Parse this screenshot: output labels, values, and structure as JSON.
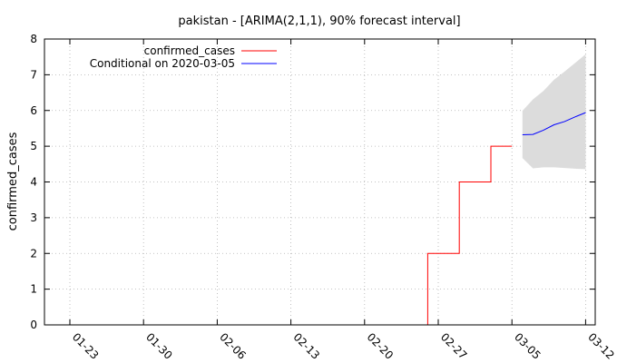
{
  "chart_data": {
    "type": "line",
    "title": "pakistan -  [ARIMA(2,1,1), 90% forecast interval]",
    "xlabel": "",
    "ylabel": "confirmed_cases",
    "ylim": [
      0,
      8
    ],
    "yticks": [
      "0",
      "1",
      "2",
      "3",
      "4",
      "5",
      "6",
      "7",
      "8"
    ],
    "xticks": [
      "01-23",
      "01-30",
      "02-06",
      "02-13",
      "02-20",
      "02-27",
      "03-05",
      "03-12"
    ],
    "grid": true,
    "legend_position": "top-left",
    "colors": {
      "observed": "#ff0000",
      "forecast": "#0000ff",
      "interval": "#dcdcdc"
    },
    "series": [
      {
        "name": "confirmed_cases",
        "x": [
          "2020-02-25",
          "2020-02-26",
          "2020-02-27",
          "2020-02-28",
          "2020-02-29",
          "2020-03-01",
          "2020-03-02",
          "2020-03-03",
          "2020-03-04",
          "2020-03-05"
        ],
        "values": [
          0,
          2,
          2,
          2,
          4,
          4,
          4,
          5,
          5,
          5
        ]
      },
      {
        "name": "Conditional on 2020-03-05",
        "x": [
          "2020-03-06",
          "2020-03-07",
          "2020-03-08",
          "2020-03-09",
          "2020-03-10",
          "2020-03-11",
          "2020-03-12"
        ],
        "values": [
          5.32,
          5.33,
          5.45,
          5.6,
          5.69,
          5.82,
          5.94
        ]
      }
    ],
    "interval": {
      "x": [
        "2020-03-06",
        "2020-03-07",
        "2020-03-08",
        "2020-03-09",
        "2020-03-10",
        "2020-03-11",
        "2020-03-12"
      ],
      "lower": [
        4.67,
        4.38,
        4.41,
        4.41,
        4.39,
        4.37,
        4.36
      ],
      "upper": [
        5.99,
        6.31,
        6.55,
        6.86,
        7.09,
        7.33,
        7.57
      ]
    }
  }
}
